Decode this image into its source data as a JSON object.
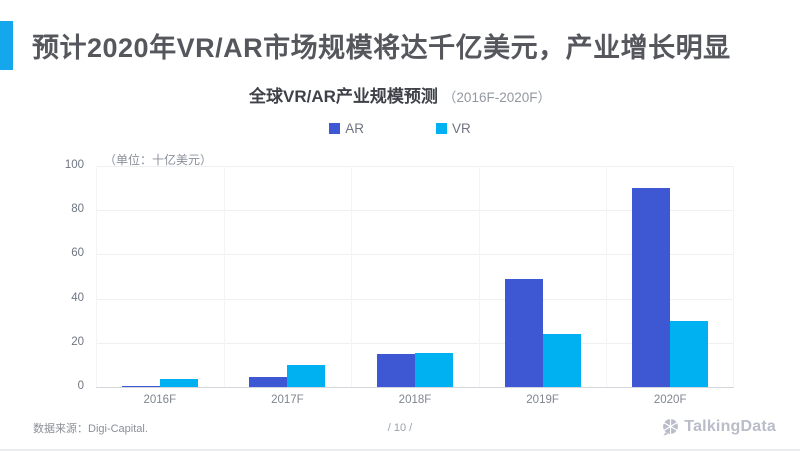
{
  "header": {
    "title": "预计2020年VR/AR市场规模将达千亿美元，产业增长明显"
  },
  "chart": {
    "title": "全球VR/AR产业规模预测",
    "title_range": "（2016F-2020F）",
    "unit_label": "（单位：十亿美元）"
  },
  "chart_data": {
    "type": "bar",
    "title": "全球VR/AR产业规模预测（2016F-2020F）",
    "categories": [
      "2016F",
      "2017F",
      "2018F",
      "2019F",
      "2020F"
    ],
    "series": [
      {
        "name": "AR",
        "color": "#3d58d2",
        "values": [
          0.6,
          4.5,
          15,
          49,
          90
        ]
      },
      {
        "name": "VR",
        "color": "#00b1f1",
        "values": [
          3.8,
          10,
          15.5,
          24,
          30
        ]
      }
    ],
    "ylabel": "（单位：十亿美元）",
    "ylim": [
      0,
      100
    ],
    "yticks": [
      0,
      20,
      40,
      60,
      80,
      100
    ],
    "grid": true,
    "legend_position": "top"
  },
  "footer": {
    "source": "数据来源：Digi-Capital.",
    "page": "/ 10 /",
    "brand": "TalkingData"
  },
  "colors": {
    "accent": "#14a7ec",
    "ar": "#3d58d2",
    "vr": "#00b1f1",
    "title_text": "#55575c"
  }
}
